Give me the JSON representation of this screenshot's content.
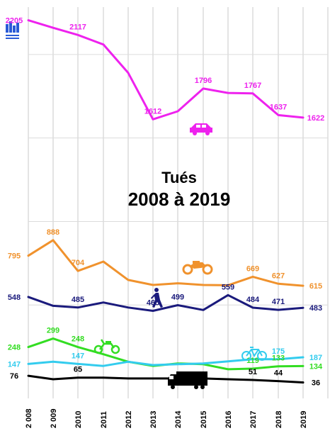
{
  "chart_data": {
    "type": "line",
    "title": "Tués",
    "subtitle": "2008 à 2019",
    "categories": [
      "2 008",
      "2 009",
      "2010",
      "2011",
      "2012",
      "2013",
      "2014",
      "2015",
      "2016",
      "2017",
      "2018",
      "2019"
    ],
    "ylim": [
      0,
      2250
    ],
    "grid": true,
    "series": [
      {
        "key": "car",
        "color": "#ee22ee",
        "icon": "car-icon",
        "values": [
          2205,
          2160,
          2117,
          2060,
          1890,
          1612,
          1660,
          1796,
          1770,
          1767,
          1637,
          1622
        ],
        "labels": {
          "0": "2205",
          "2": "2117",
          "5": "1612",
          "7": "1796",
          "9": "1767",
          "10": "1637",
          "11": "1622"
        }
      },
      {
        "key": "motorcycle",
        "color": "#f0922d",
        "icon": "motorcycle-icon",
        "values": [
          795,
          888,
          704,
          760,
          650,
          620,
          630,
          620,
          618,
          669,
          627,
          615
        ],
        "labels": {
          "0": "795",
          "1": "888",
          "2": "704",
          "9": "669",
          "10": "627",
          "11": "615"
        }
      },
      {
        "key": "pedestrian",
        "color": "#1a1a7c",
        "icon": "pedestrian-icon",
        "values": [
          548,
          495,
          485,
          515,
          485,
          465,
          499,
          470,
          559,
          484,
          471,
          483
        ],
        "labels": {
          "0": "548",
          "2": "485",
          "5": "465",
          "6": "499",
          "8": "559",
          "9": "484",
          "10": "471",
          "11": "483"
        }
      },
      {
        "key": "moped",
        "color": "#33dd22",
        "icon": "moped-icon",
        "values": [
          248,
          299,
          248,
          205,
          160,
          135,
          150,
          145,
          115,
          119,
          133,
          134
        ],
        "labels": {
          "0": "248",
          "1": "299",
          "2": "248",
          "9": "119",
          "10": "133",
          "11": "134"
        }
      },
      {
        "key": "bicycle",
        "color": "#33ccee",
        "icon": "bicycle-icon",
        "values": [
          147,
          160,
          147,
          135,
          160,
          140,
          145,
          150,
          162,
          175,
          175,
          187
        ],
        "labels": {
          "0": "147",
          "2": "147",
          "10": "175",
          "11": "187"
        }
      },
      {
        "key": "truck",
        "color": "#000000",
        "icon": "truck-icon",
        "values": [
          76,
          55,
          65,
          65,
          60,
          60,
          60,
          60,
          55,
          51,
          44,
          36
        ],
        "labels": {
          "0": "76",
          "2": "65",
          "9": "51",
          "10": "44",
          "11": "36"
        }
      }
    ]
  }
}
